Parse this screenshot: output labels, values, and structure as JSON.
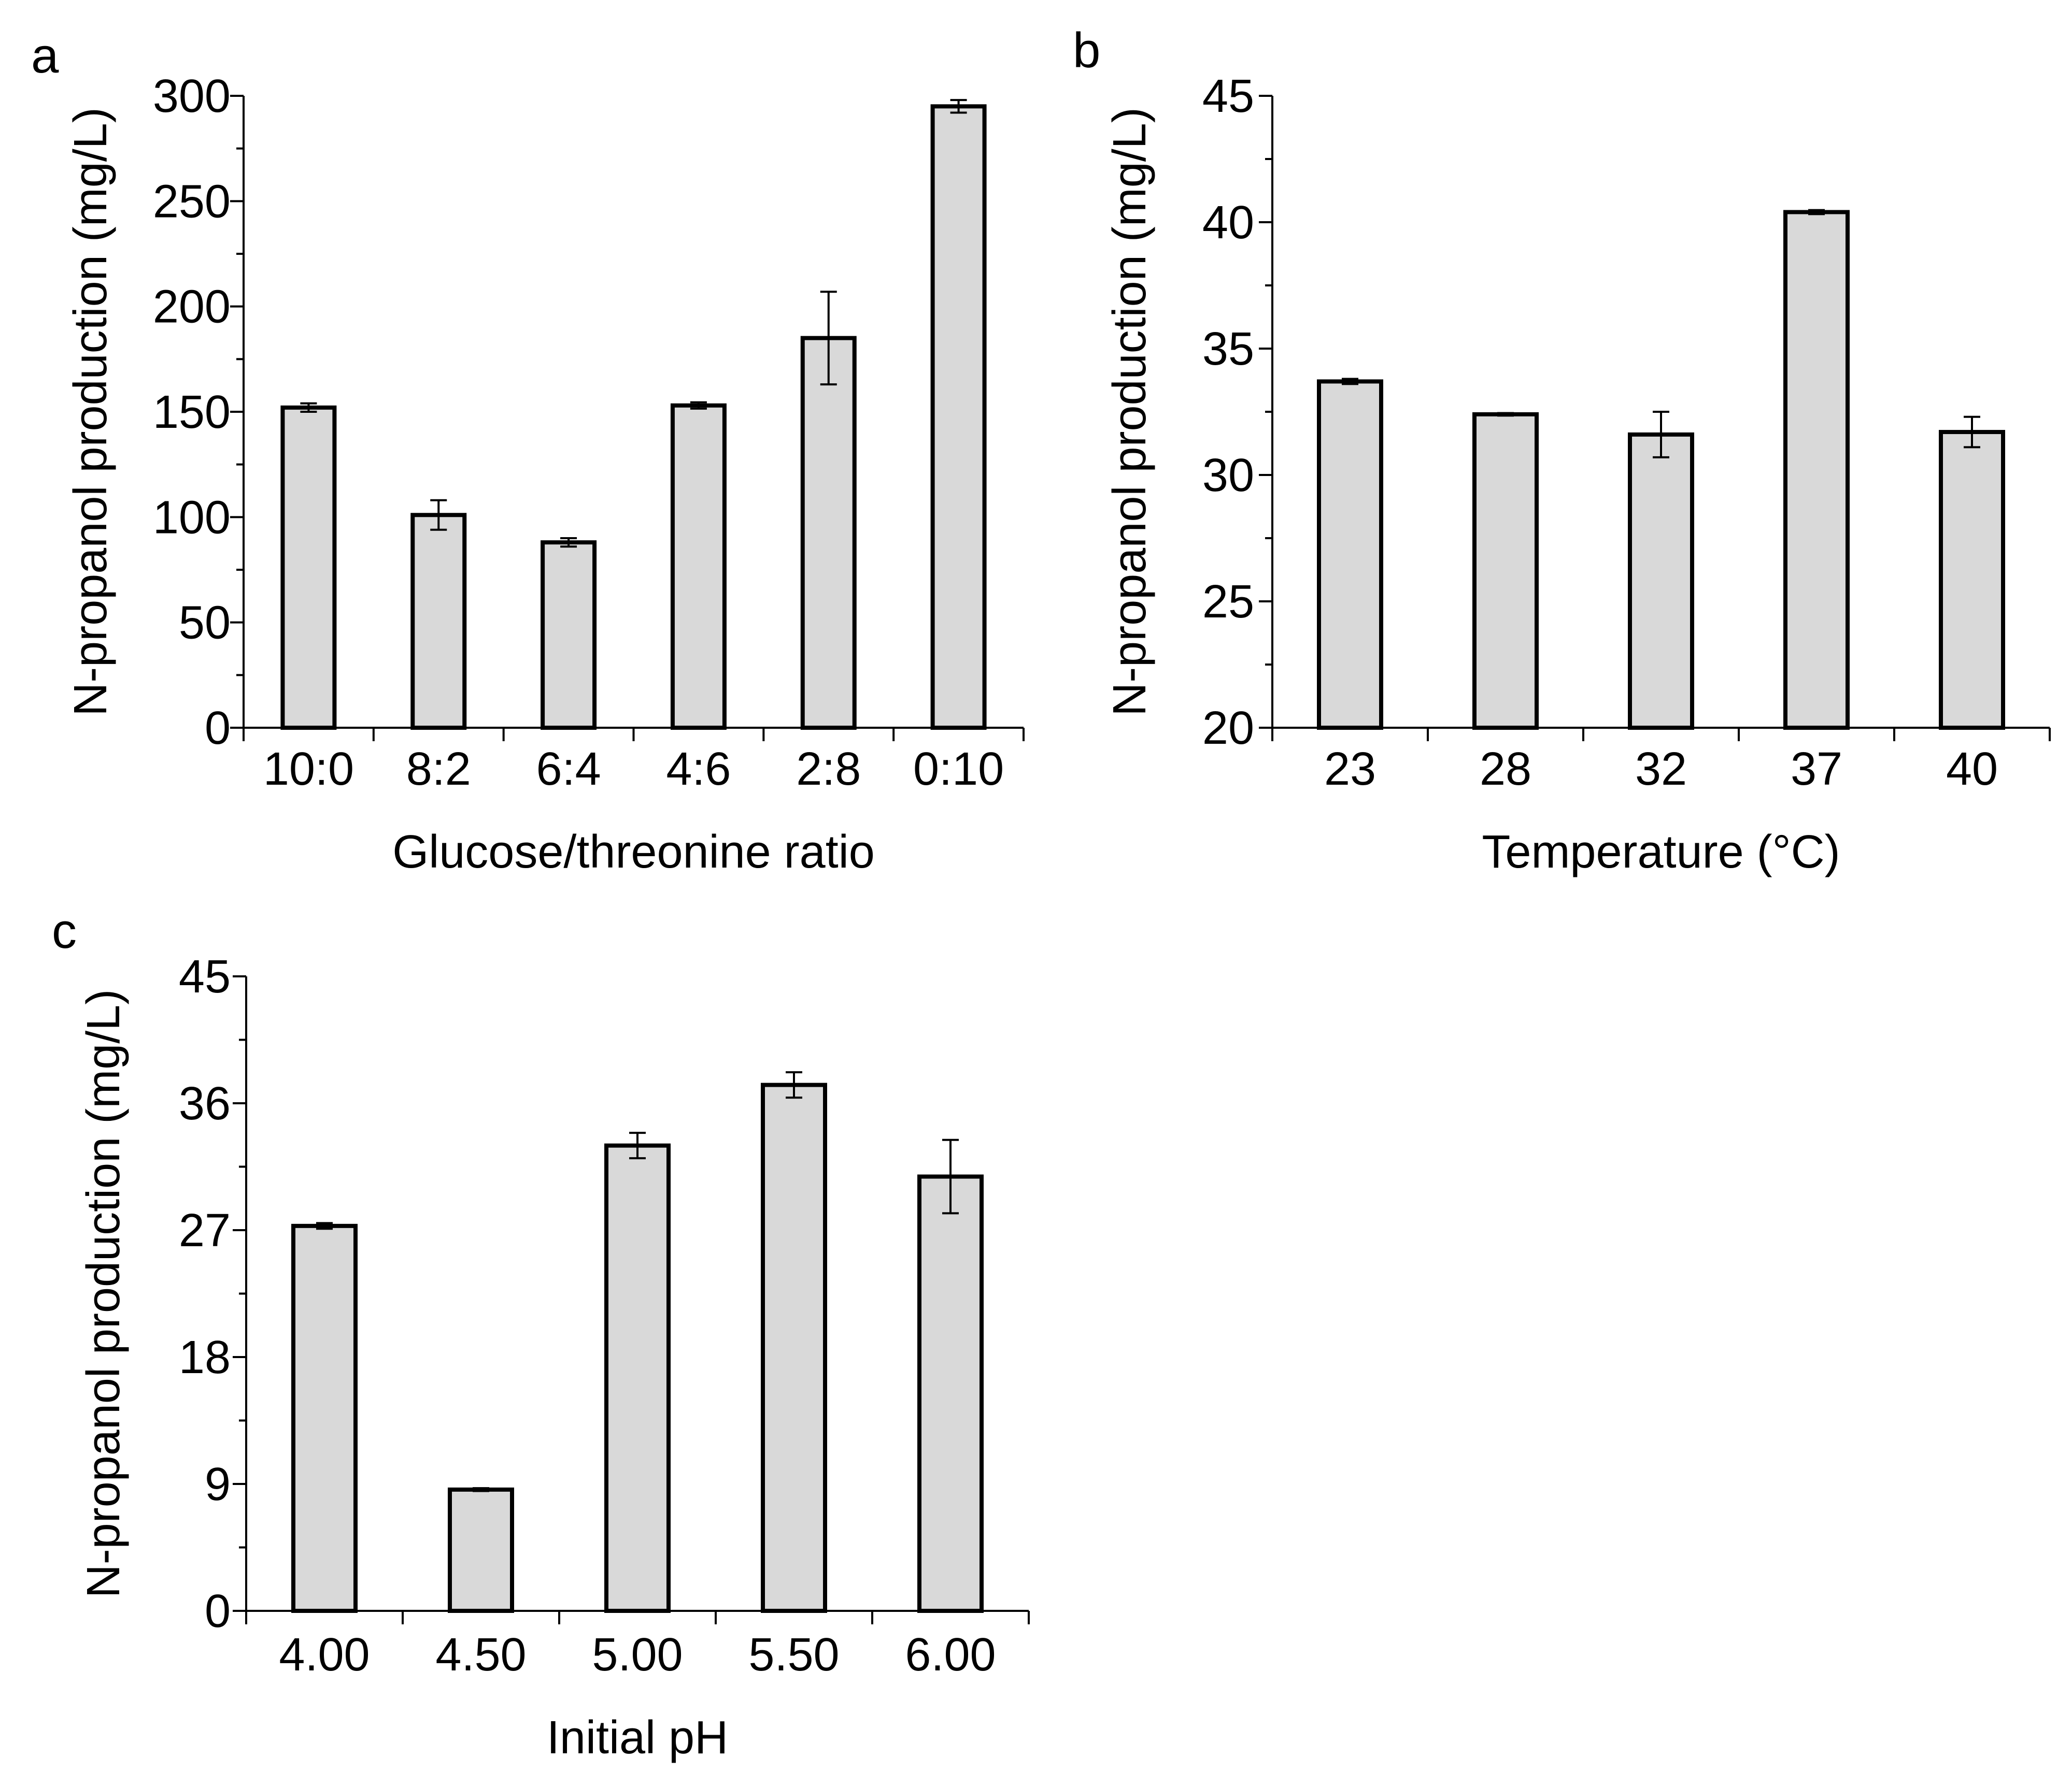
{
  "colors": {
    "bar_fill": "#d9d9d9",
    "bar_stroke": "#000000",
    "axis": "#000000"
  },
  "chart_data": [
    {
      "panel": "a",
      "type": "bar",
      "title": "",
      "xlabel": "Glucose/threonine ratio",
      "ylabel": "N-propanol production (mg/L)",
      "categories": [
        "10:0",
        "8:2",
        "6:4",
        "4:6",
        "2:8",
        "0:10"
      ],
      "values": [
        152,
        101,
        88,
        153,
        185,
        295
      ],
      "errors": [
        2,
        7,
        2,
        1.5,
        22,
        3
      ],
      "ylim": [
        0,
        300
      ],
      "yticks": [
        "0",
        "50",
        "100",
        "150",
        "200",
        "250",
        "300"
      ],
      "grid": false
    },
    {
      "panel": "b",
      "type": "bar",
      "title": "",
      "xlabel": "Temperature (°C)",
      "ylabel": "N-propanol production (mg/L)",
      "categories": [
        "23",
        "28",
        "32",
        "37",
        "40"
      ],
      "values": [
        33.7,
        32.4,
        31.6,
        40.4,
        31.7
      ],
      "errors": [
        0.1,
        0.05,
        0.9,
        0.08,
        0.6
      ],
      "ylim": [
        20,
        45
      ],
      "yticks": [
        "20",
        "25",
        "30",
        "35",
        "40",
        "45"
      ],
      "grid": false
    },
    {
      "panel": "c",
      "type": "bar",
      "title": "",
      "xlabel": "Initial pH",
      "ylabel": "N-propanol production (mg/L)",
      "categories": [
        "4.00",
        "4.50",
        "5.00",
        "5.50",
        "6.00"
      ],
      "values": [
        27.3,
        8.6,
        33.0,
        37.3,
        30.8
      ],
      "errors": [
        0.2,
        0.1,
        0.9,
        0.9,
        2.6
      ],
      "ylim": [
        0,
        45
      ],
      "yticks": [
        "0",
        "9",
        "18",
        "27",
        "36",
        "45"
      ],
      "grid": false
    }
  ]
}
